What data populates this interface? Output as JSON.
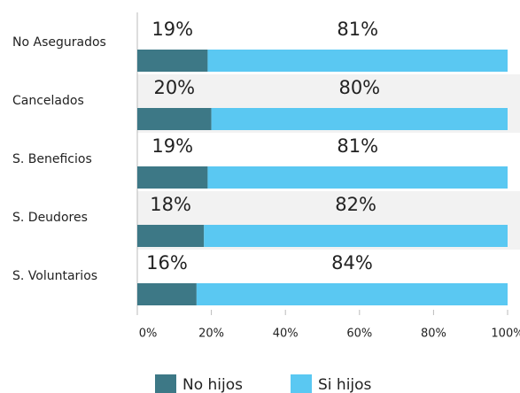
{
  "chart_data": {
    "type": "bar",
    "orientation": "horizontal",
    "stacked": true,
    "categories": [
      "No Asegurados",
      "Cancelados",
      "S. Beneficios",
      "S. Deudores",
      "S. Voluntarios"
    ],
    "series": [
      {
        "name": "No hijos",
        "color": "#3d7886",
        "values": [
          19,
          20,
          19,
          18,
          16
        ],
        "value_labels": [
          "19%",
          "20%",
          "19%",
          "18%",
          "16%"
        ]
      },
      {
        "name": "Si hijos",
        "color": "#5ac8f2",
        "values": [
          81,
          80,
          81,
          82,
          84
        ],
        "value_labels": [
          "81%",
          "80%",
          "81%",
          "82%",
          "84%"
        ]
      }
    ],
    "xlim": [
      0,
      100
    ],
    "xticks": [
      {
        "value": 0,
        "label": "0%"
      },
      {
        "value": 20,
        "label": "20%"
      },
      {
        "value": 40,
        "label": "40%"
      },
      {
        "value": 60,
        "label": "60%"
      },
      {
        "value": 80,
        "label": "80%"
      },
      {
        "value": 100,
        "label": "100%"
      }
    ],
    "legend": "bottom"
  }
}
